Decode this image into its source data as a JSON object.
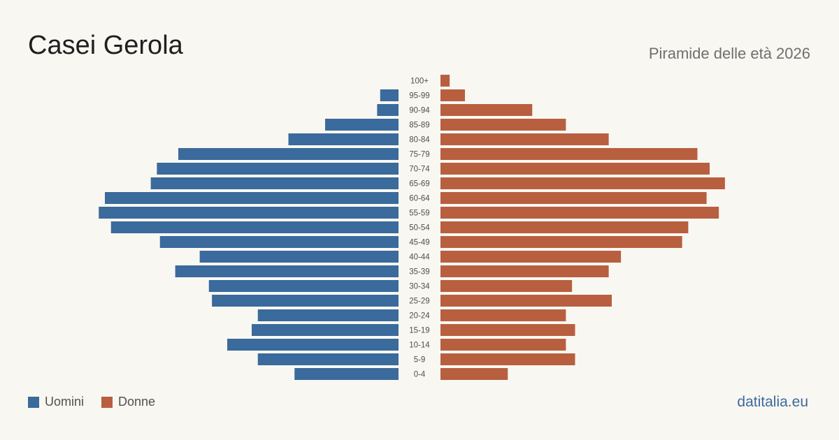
{
  "header": {
    "title": "Casei Gerola",
    "subtitle": "Piramide delle età 2026"
  },
  "legend": {
    "male_label": "Uomini",
    "female_label": "Donne"
  },
  "footer": {
    "brand": "datitalia.eu"
  },
  "colors": {
    "male": "#3b6a9c",
    "female": "#b85f3f",
    "brand": "#3b6a9c"
  },
  "chart_data": {
    "type": "bar",
    "orientation": "horizontal",
    "diverging": true,
    "title": "",
    "categories": [
      "100+",
      "95-99",
      "90-94",
      "85-89",
      "80-84",
      "75-79",
      "70-74",
      "65-69",
      "60-64",
      "55-59",
      "50-54",
      "45-49",
      "40-44",
      "35-39",
      "30-34",
      "25-29",
      "20-24",
      "15-19",
      "10-14",
      "5-9",
      "0-4"
    ],
    "series": [
      {
        "name": "Uomini",
        "side": "left",
        "values": [
          0,
          3,
          3.5,
          12,
          18,
          36,
          39.5,
          40.5,
          48,
          49,
          47,
          39,
          32.5,
          36.5,
          31,
          30.5,
          23,
          24,
          28,
          23,
          17
        ]
      },
      {
        "name": "Donne",
        "side": "right",
        "values": [
          1.5,
          4,
          15,
          20.5,
          27.5,
          42,
          44,
          46.5,
          43.5,
          45.5,
          40.5,
          39.5,
          29.5,
          27.5,
          21.5,
          28,
          20.5,
          22,
          20.5,
          22,
          11
        ]
      }
    ],
    "grid": false,
    "legend_position": "bottom-left"
  }
}
